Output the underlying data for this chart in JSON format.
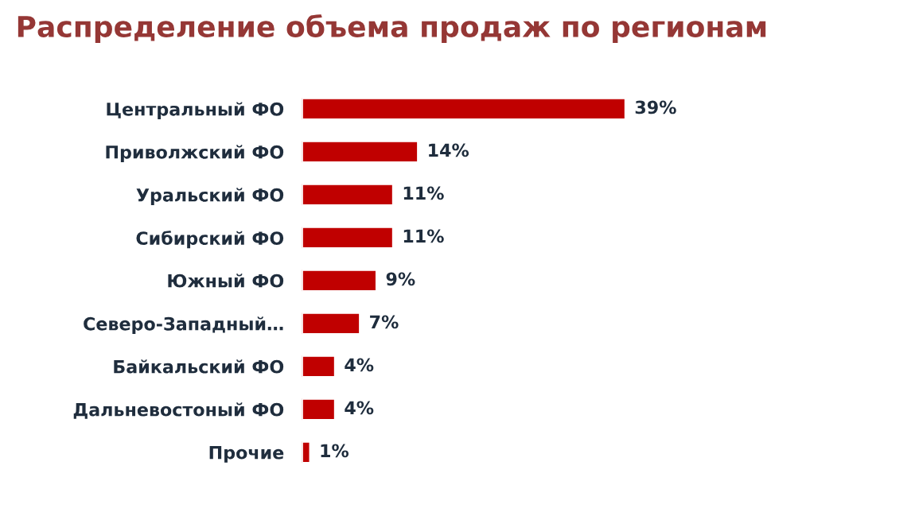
{
  "chart_data": {
    "type": "bar",
    "orientation": "horizontal",
    "title": "Распределение объема продаж по регионам",
    "categories": [
      "Центральный ФО",
      "Приволжский ФО",
      "Уральский ФО",
      "Сибирский ФО",
      "Южный ФО",
      "Северо-Западный…",
      "Байкальский ФО",
      "Дальневостоный ФО",
      "Прочие"
    ],
    "values": [
      39,
      14,
      11,
      11,
      9,
      7,
      4,
      4,
      1
    ],
    "value_labels": [
      "39%",
      "14%",
      "11%",
      "11%",
      "9%",
      "7%",
      "4%",
      "4%",
      "1%"
    ],
    "color": "#c00000",
    "grid": false,
    "legend": false
  }
}
